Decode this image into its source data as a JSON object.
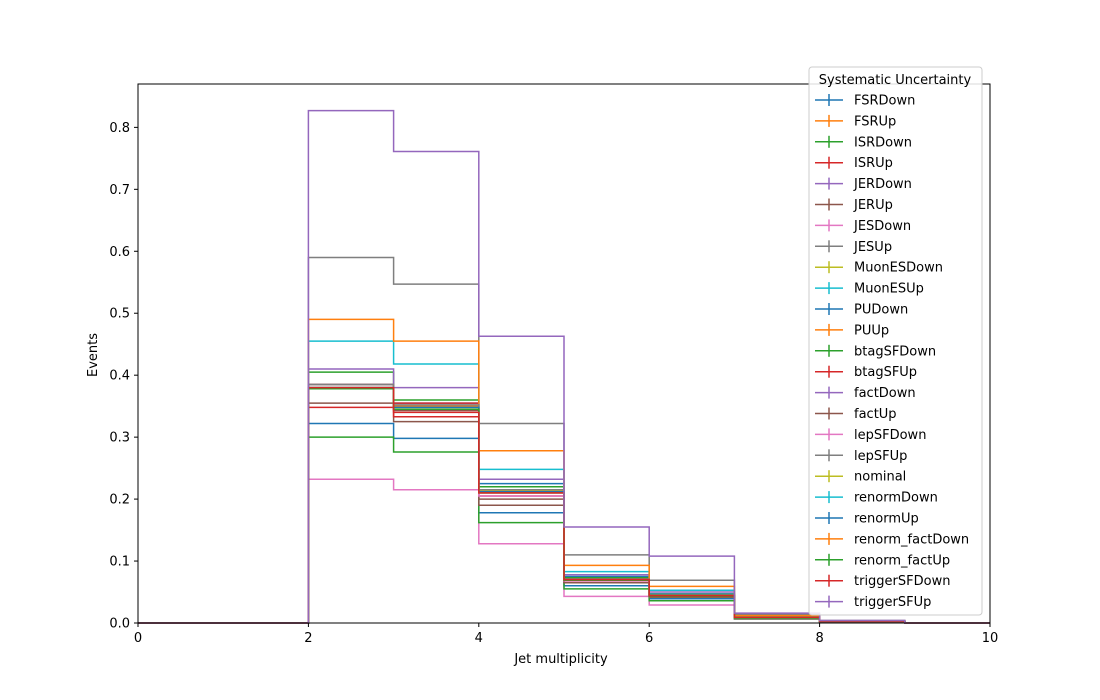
{
  "chart_data": {
    "type": "line",
    "style": "step-histogram",
    "xlabel": "Jet multiplicity",
    "ylabel": "Events",
    "xlim": [
      0,
      10
    ],
    "ylim": [
      0,
      0.87
    ],
    "xticks": [
      "0",
      "2",
      "4",
      "6",
      "8",
      "10"
    ],
    "yticks": [
      "0.0",
      "0.1",
      "0.2",
      "0.3",
      "0.4",
      "0.5",
      "0.6",
      "0.7",
      "0.8"
    ],
    "bin_edges": [
      0,
      1,
      2,
      3,
      4,
      5,
      6,
      7,
      8,
      9,
      10
    ],
    "grid": false,
    "legend_title": "Systematic Uncertainty",
    "legend_placement": "upper right",
    "series": [
      {
        "name": "FSRDown",
        "color": "#1f77b4",
        "values": [
          0,
          0,
          0.385,
          0.355,
          0.225,
          0.075,
          0.047,
          0.01,
          0.003,
          0
        ]
      },
      {
        "name": "FSRUp",
        "color": "#ff7f0e",
        "values": [
          0,
          0,
          0.38,
          0.35,
          0.215,
          0.07,
          0.045,
          0.009,
          0.003,
          0
        ]
      },
      {
        "name": "ISRDown",
        "color": "#2ca02c",
        "values": [
          0,
          0,
          0.405,
          0.36,
          0.22,
          0.073,
          0.046,
          0.01,
          0.003,
          0
        ]
      },
      {
        "name": "ISRUp",
        "color": "#d62728",
        "values": [
          0,
          0,
          0.385,
          0.355,
          0.215,
          0.071,
          0.045,
          0.009,
          0.003,
          0
        ]
      },
      {
        "name": "JERDown",
        "color": "#9467bd",
        "values": [
          0,
          0,
          0.41,
          0.38,
          0.232,
          0.078,
          0.05,
          0.011,
          0.003,
          0
        ]
      },
      {
        "name": "JERUp",
        "color": "#8c564b",
        "values": [
          0,
          0,
          0.355,
          0.325,
          0.2,
          0.065,
          0.041,
          0.009,
          0.002,
          0
        ]
      },
      {
        "name": "JESDown",
        "color": "#e377c2",
        "values": [
          0,
          0,
          0.232,
          0.215,
          0.128,
          0.043,
          0.029,
          0.006,
          0.002,
          0
        ]
      },
      {
        "name": "JESUp",
        "color": "#7f7f7f",
        "values": [
          0,
          0,
          0.59,
          0.547,
          0.322,
          0.11,
          0.069,
          0.014,
          0.004,
          0
        ]
      },
      {
        "name": "MuonESDown",
        "color": "#bcbd22",
        "values": [
          0,
          0,
          0.38,
          0.345,
          0.213,
          0.07,
          0.044,
          0.009,
          0.003,
          0
        ]
      },
      {
        "name": "MuonESUp",
        "color": "#17becf",
        "values": [
          0,
          0,
          0.455,
          0.418,
          0.248,
          0.083,
          0.053,
          0.011,
          0.003,
          0
        ]
      },
      {
        "name": "PUDown",
        "color": "#1f77b4",
        "values": [
          0,
          0,
          0.322,
          0.298,
          0.178,
          0.06,
          0.039,
          0.008,
          0.002,
          0
        ]
      },
      {
        "name": "PUUp",
        "color": "#ff7f0e",
        "values": [
          0,
          0,
          0.49,
          0.455,
          0.278,
          0.093,
          0.059,
          0.012,
          0.003,
          0
        ]
      },
      {
        "name": "btagSFDown",
        "color": "#2ca02c",
        "values": [
          0,
          0,
          0.3,
          0.276,
          0.162,
          0.055,
          0.036,
          0.007,
          0.002,
          0
        ]
      },
      {
        "name": "btagSFUp",
        "color": "#d62728",
        "values": [
          0,
          0,
          0.348,
          0.333,
          0.205,
          0.068,
          0.043,
          0.009,
          0.003,
          0
        ]
      },
      {
        "name": "factDown",
        "color": "#9467bd",
        "values": [
          0,
          0,
          0.38,
          0.345,
          0.21,
          0.07,
          0.044,
          0.009,
          0.003,
          0
        ]
      },
      {
        "name": "factUp",
        "color": "#8c564b",
        "values": [
          0,
          0,
          0.378,
          0.343,
          0.19,
          0.065,
          0.042,
          0.009,
          0.002,
          0
        ]
      },
      {
        "name": "lepSFDown",
        "color": "#e377c2",
        "values": [
          0,
          0,
          0.378,
          0.345,
          0.205,
          0.068,
          0.043,
          0.009,
          0.003,
          0
        ]
      },
      {
        "name": "lepSFUp",
        "color": "#7f7f7f",
        "values": [
          0,
          0,
          0.385,
          0.352,
          0.215,
          0.071,
          0.045,
          0.009,
          0.003,
          0
        ]
      },
      {
        "name": "nominal",
        "color": "#bcbd22",
        "values": [
          0,
          0,
          0.38,
          0.348,
          0.212,
          0.07,
          0.044,
          0.009,
          0.003,
          0
        ]
      },
      {
        "name": "renormDown",
        "color": "#17becf",
        "values": [
          0,
          0,
          0.38,
          0.345,
          0.212,
          0.07,
          0.044,
          0.009,
          0.003,
          0
        ]
      },
      {
        "name": "renormUp",
        "color": "#1f77b4",
        "values": [
          0,
          0,
          0.38,
          0.348,
          0.212,
          0.07,
          0.044,
          0.009,
          0.003,
          0
        ]
      },
      {
        "name": "renorm_factDown",
        "color": "#ff7f0e",
        "values": [
          0,
          0,
          0.378,
          0.345,
          0.21,
          0.07,
          0.044,
          0.009,
          0.003,
          0
        ]
      },
      {
        "name": "renorm_factUp",
        "color": "#2ca02c",
        "values": [
          0,
          0,
          0.378,
          0.345,
          0.21,
          0.069,
          0.043,
          0.009,
          0.003,
          0
        ]
      },
      {
        "name": "triggerSFDown",
        "color": "#d62728",
        "values": [
          0,
          0,
          0.38,
          0.34,
          0.21,
          0.07,
          0.044,
          0.009,
          0.003,
          0
        ]
      },
      {
        "name": "triggerSFUp",
        "color": "#9467bd",
        "values": [
          0,
          0,
          0.827,
          0.761,
          0.463,
          0.155,
          0.108,
          0.016,
          0.004,
          0
        ]
      }
    ]
  }
}
